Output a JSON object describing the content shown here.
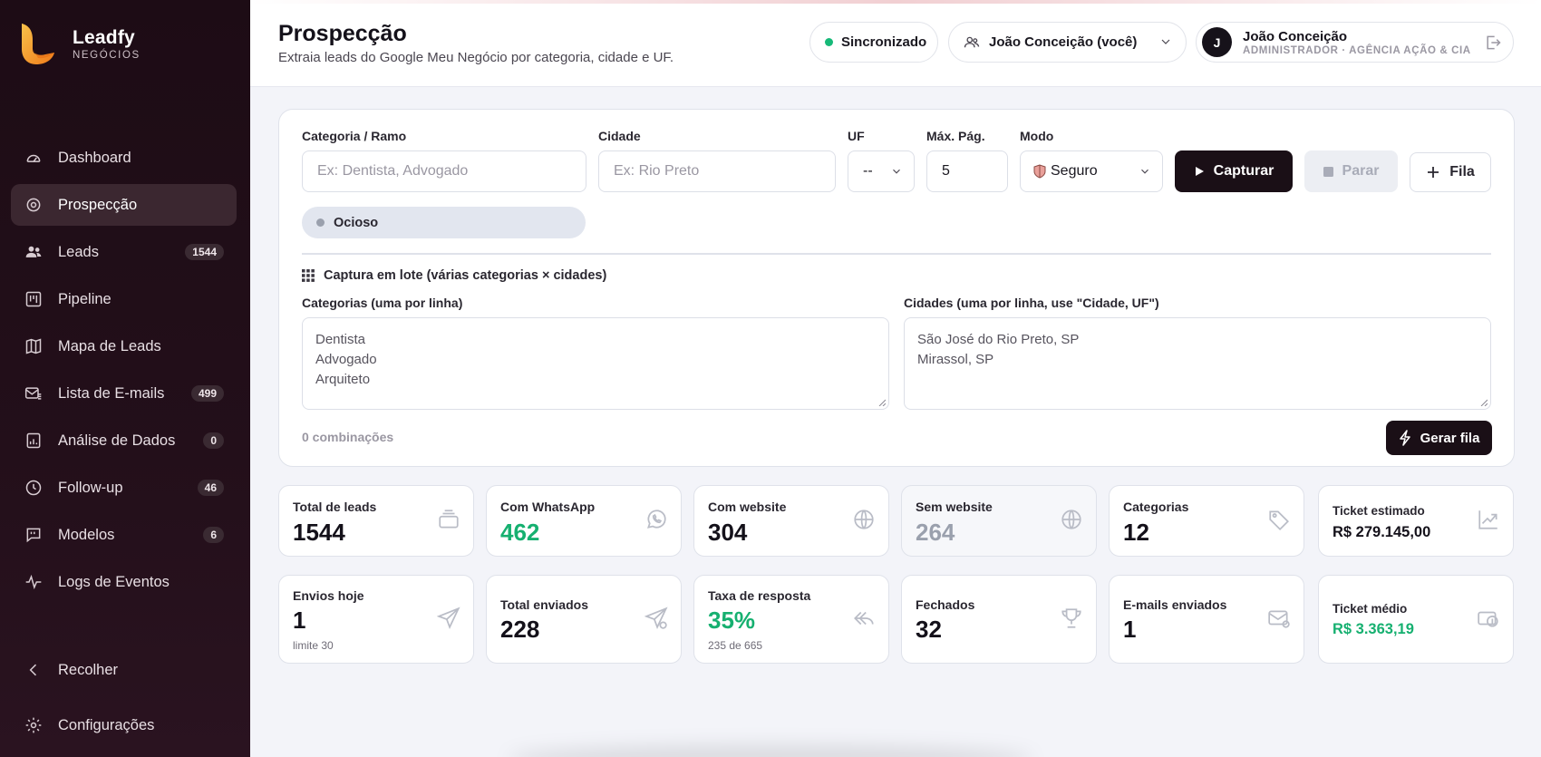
{
  "brand": {
    "name": "Leadfy",
    "sub": "NEGÓCIOS",
    "colors": {
      "logo_top": "#f5a623",
      "logo_bottom": "#f07b1a"
    }
  },
  "sidebar": {
    "items": [
      {
        "label": "Dashboard",
        "icon": "gauge-icon",
        "badge": ""
      },
      {
        "label": "Prospecção",
        "icon": "target-icon",
        "badge": "",
        "active": true
      },
      {
        "label": "Leads",
        "icon": "users-icon",
        "badge": "1544"
      },
      {
        "label": "Pipeline",
        "icon": "kanban-icon",
        "badge": ""
      },
      {
        "label": "Mapa de Leads",
        "icon": "map-icon",
        "badge": ""
      },
      {
        "label": "Lista de E-mails",
        "icon": "mail-list-icon",
        "badge": "499"
      },
      {
        "label": "Análise de Dados",
        "icon": "bar-chart-icon",
        "badge": "0"
      },
      {
        "label": "Follow-up",
        "icon": "clock-icon",
        "badge": "46"
      },
      {
        "label": "Modelos",
        "icon": "message-template-icon",
        "badge": "6"
      },
      {
        "label": "Logs de Eventos",
        "icon": "activity-icon",
        "badge": ""
      }
    ],
    "collapse_label": "Recolher",
    "settings_label": "Configurações"
  },
  "header": {
    "title": "Prospecção",
    "subtitle": "Extraia leads do Google Meu Negócio por categoria, cidade e UF.",
    "sync_label": "Sincronizado",
    "user_select": "João Conceição (você)",
    "user": {
      "initial": "J",
      "name": "João Conceição",
      "role": "ADMINISTRADOR · AGÊNCIA AÇÃO & CIA"
    }
  },
  "form": {
    "category_label": "Categoria / Ramo",
    "category_placeholder": "Ex: Dentista, Advogado",
    "city_label": "Cidade",
    "city_placeholder": "Ex: Rio Preto",
    "uf_label": "UF",
    "uf_value": "--",
    "maxpag_label": "Máx. Pág.",
    "maxpag_value": "5",
    "mode_label": "Modo",
    "mode_value": "Seguro",
    "capture_label": "Capturar",
    "stop_label": "Parar",
    "queue_label": "Fila",
    "status": "Ocioso",
    "batch_title": "Captura em lote (várias categorias × cidades)",
    "categories_label": "Categorias (uma por linha)",
    "categories_lines": [
      "Dentista",
      "Advogado",
      "Arquiteto"
    ],
    "cities_label": "Cidades (uma por linha, use \"Cidade, UF\")",
    "cities_lines": [
      "São José do Rio Preto, SP",
      "Mirassol, SP"
    ],
    "combinations": "0 combinações",
    "generate_label": "Gerar fila"
  },
  "stats": {
    "row1": [
      {
        "label": "Total de leads",
        "value": "1544",
        "icon": "inbox-icon"
      },
      {
        "label": "Com WhatsApp",
        "value": "462",
        "icon": "whatsapp-icon",
        "color": "#16b070"
      },
      {
        "label": "Com website",
        "value": "304",
        "icon": "globe-icon"
      },
      {
        "label": "Sem website",
        "value": "264",
        "icon": "globe-icon",
        "color": "#9aa0ad"
      },
      {
        "label": "Categorias",
        "value": "12",
        "icon": "tag-icon"
      },
      {
        "label": "Ticket estimado",
        "value": "R$ 279.145,00",
        "icon": "trend-up-icon"
      }
    ],
    "row2": [
      {
        "label": "Envios hoje",
        "value": "1",
        "note": "limite 30",
        "icon": "send-icon"
      },
      {
        "label": "Total enviados",
        "value": "228",
        "icon": "send-check-icon"
      },
      {
        "label": "Taxa de resposta",
        "value": "35%",
        "note": "235 de 665",
        "icon": "reply-icon",
        "color": "#16b070"
      },
      {
        "label": "Fechados",
        "value": "32",
        "icon": "trophy-icon"
      },
      {
        "label": "E-mails enviados",
        "value": "1",
        "icon": "mail-check-icon"
      },
      {
        "label": "Ticket médio",
        "value": "R$ 3.363,19",
        "icon": "money-icon",
        "color": "#16b070"
      }
    ]
  }
}
